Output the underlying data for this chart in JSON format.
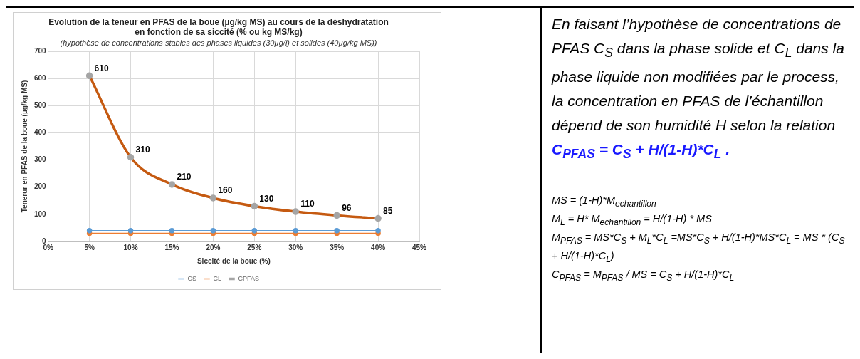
{
  "chart_data": [
    {
      "type": "line",
      "title": "Evolution de la teneur en PFAS de la boue (µg/kg MS) au cours de la déshydratation\nen fonction de sa siccité (% ou kg MS/kg)",
      "subtitle": "(hypothèse de concentrations stables des phases liquides (30µg/l) et solides (40µg/kg MS))",
      "xlabel": "Siccité de la boue (%)",
      "ylabel": "Tenerur en PFAS de la boue (µg/kg MS)",
      "x": [
        5,
        10,
        15,
        20,
        25,
        30,
        35,
        40
      ],
      "series": [
        {
          "name": "CS",
          "color": "#5b9bd5",
          "values": [
            40,
            40,
            40,
            40,
            40,
            40,
            40,
            40
          ]
        },
        {
          "name": "CL",
          "color": "#ed7d31",
          "values": [
            30,
            30,
            30,
            30,
            30,
            30,
            30,
            30
          ]
        },
        {
          "name": "CPFAS",
          "color": "#c55a11",
          "values": [
            610,
            310,
            210,
            160,
            130,
            110,
            96,
            85
          ],
          "value_labels": [
            "610",
            "310",
            "210",
            "160",
            "130",
            "110",
            "96",
            "85"
          ]
        }
      ],
      "xlim": [
        0,
        45
      ],
      "xticks": [
        {
          "value": 0,
          "label": "0%"
        },
        {
          "value": 5,
          "label": "5%"
        },
        {
          "value": 10,
          "label": "10%"
        },
        {
          "value": 15,
          "label": "15%"
        },
        {
          "value": 20,
          "label": "20%"
        },
        {
          "value": 25,
          "label": "25%"
        },
        {
          "value": 30,
          "label": "30%"
        },
        {
          "value": 35,
          "label": "35%"
        },
        {
          "value": 40,
          "label": "40%"
        },
        {
          "value": 45,
          "label": "45%"
        }
      ],
      "ylim": [
        0,
        700
      ],
      "yticks": [
        0,
        100,
        200,
        300,
        400,
        500,
        600,
        700
      ],
      "grid": true,
      "legend": "bottom",
      "marker": "circle"
    },
    {
      "type": "other",
      "annotations": [
        "En faisant l’hypothèse de concentrations de PFAS  C$_{S}$ dans la phase solide et C$_{L}$ dans la phase liquide non modifiées par le process, la concentration en PFAS de l’échantillon dépend de son humidité H selon la relation",
        "C$_{PFAS}$ = C$_{S}$ + H/(1-H)*C$_{L}$ .",
        "MS = (1-H)*M$_{echantillon}$",
        "M$_{L}$ = H* M$_{echantillon}$ = H/(1-H) * MS",
        "M$_{PFAS}$ = MS*C$_{S}$ + M$_{L}$*C$_{L}$ =MS*C$_{S}$ + H/(1-H)*MS*C$_{L}$ = MS * (C$_{S}$ + H/(1-H)*C$_{L}$)",
        "C$_{PFAS}$ = M$_{PFAS}$ / MS = C$_{S}$ + H/(1-H)*C$_{L}$"
      ]
    }
  ]
}
